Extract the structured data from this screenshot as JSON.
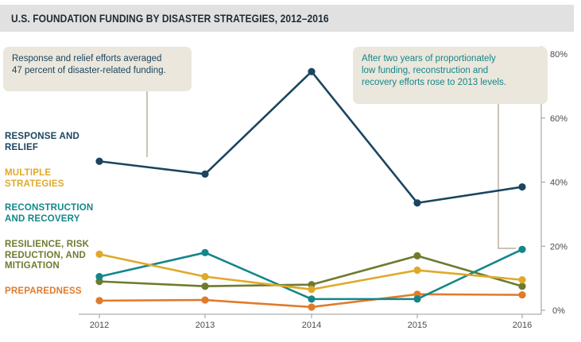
{
  "title": "U.S. FOUNDATION FUNDING BY DISASTER STRATEGIES, 2012–2016",
  "annotations": {
    "left": [
      "Response and relief efforts averaged",
      "47 percent of disaster-related funding."
    ],
    "right": [
      "After two years of proportionately",
      "low funding, reconstruction and",
      "recovery efforts rose to 2013 levels."
    ]
  },
  "series_labels": [
    {
      "lines": [
        "RESPONSE AND",
        "RELIEF"
      ],
      "color": "#1b4560"
    },
    {
      "lines": [
        "MULTIPLE",
        "STRATEGIES"
      ],
      "color": "#e0a92a"
    },
    {
      "lines": [
        "RECONSTRUCTION",
        "AND RECOVERY"
      ],
      "color": "#14868a"
    },
    {
      "lines": [
        "RESILIENCE, RISK",
        "REDUCTION, AND",
        "MITIGATION"
      ],
      "color": "#6e7b2e"
    },
    {
      "lines": [
        "PREPAREDNESS"
      ],
      "color": "#e07b2c"
    }
  ],
  "chart_data": {
    "type": "line",
    "title": "U.S. FOUNDATION FUNDING BY DISASTER STRATEGIES, 2012–2016",
    "x": [
      "2012",
      "2013",
      "2014",
      "2015",
      "2016"
    ],
    "ylim": [
      0,
      80
    ],
    "y_ticks": [
      "0%",
      "20%",
      "40%",
      "60%",
      "80%"
    ],
    "grid": false,
    "legend": "left, inline labels",
    "series": [
      {
        "name": "Response and Relief",
        "color": "#1b4560",
        "values": [
          46.5,
          42.5,
          74.5,
          33.5,
          38.5
        ]
      },
      {
        "name": "Multiple Strategies",
        "color": "#e0a92a",
        "values": [
          17.5,
          10.5,
          6.5,
          12.5,
          9.5
        ]
      },
      {
        "name": "Reconstruction and Recovery",
        "color": "#14868a",
        "values": [
          10.5,
          18,
          3.5,
          3.5,
          19
        ]
      },
      {
        "name": "Resilience, Risk Reduction, and Mitigation",
        "color": "#6e7b2e",
        "values": [
          9,
          7.5,
          8,
          17,
          7.5
        ]
      },
      {
        "name": "Preparedness",
        "color": "#e07b2c",
        "values": [
          3,
          3.2,
          1,
          5,
          4.8
        ]
      }
    ]
  }
}
